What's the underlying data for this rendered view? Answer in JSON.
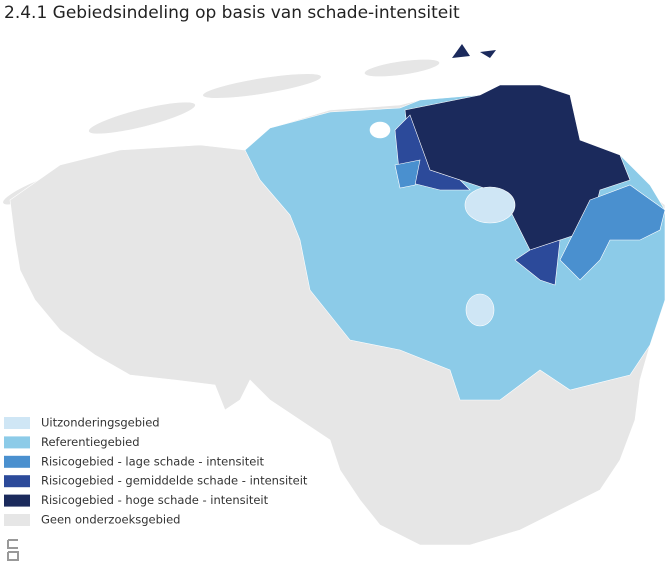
{
  "title": "2.4.1  Gebiedsindeling op basis van schade-intensiteit",
  "legend": [
    {
      "label": "Uitzonderingsgebied",
      "color": "#cfe6f5"
    },
    {
      "label": "Referentiegebied",
      "color": "#8ccbe8"
    },
    {
      "label": "Risicogebied - lage schade - intensiteit",
      "color": "#4a90cf"
    },
    {
      "label": "Risicogebied - gemiddelde schade - intensiteit",
      "color": "#2c4a9a"
    },
    {
      "label": "Risicogebied - hoge schade - intensiteit",
      "color": "#1b2a5c"
    },
    {
      "label": "Geen onderzoeksgebied",
      "color": "#e6e6e6"
    }
  ]
}
